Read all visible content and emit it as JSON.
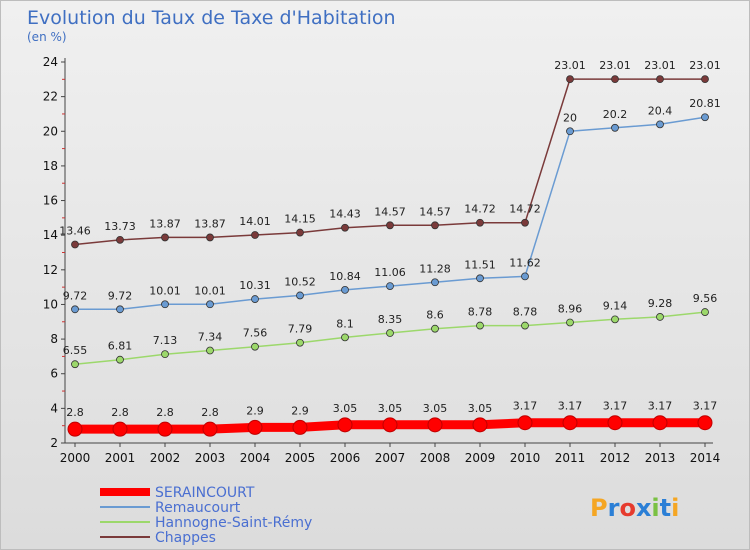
{
  "chart_data": {
    "type": "line",
    "title": "Evolution du Taux de Taxe d'Habitation",
    "unit_label": "(en %)",
    "x": [
      "2000",
      "2001",
      "2002",
      "2003",
      "2004",
      "2005",
      "2006",
      "2007",
      "2008",
      "2009",
      "2010",
      "2011",
      "2012",
      "2013",
      "2014"
    ],
    "ylim": [
      2,
      24
    ],
    "yticks": [
      2,
      4,
      6,
      8,
      10,
      12,
      14,
      16,
      18,
      20,
      22,
      24
    ],
    "grid": false,
    "legend_position": "bottom-left",
    "series": [
      {
        "name": "SERAINCOURT",
        "color": "#ff0000",
        "values": [
          2.8,
          2.8,
          2.8,
          2.8,
          2.9,
          2.9,
          3.05,
          3.05,
          3.05,
          3.05,
          3.17,
          3.17,
          3.17,
          3.17,
          3.17
        ],
        "labels": [
          "2.8",
          "2.8",
          "2.8",
          "2.8",
          "2.9",
          "2.9",
          "3.05",
          "3.05",
          "3.05",
          "3.05",
          "3.17",
          "3.17",
          "3.17",
          "3.17",
          "3.17"
        ]
      },
      {
        "name": "Remaucourt",
        "color": "#6a9bd2",
        "values": [
          9.72,
          9.72,
          10.01,
          10.01,
          10.31,
          10.52,
          10.84,
          11.06,
          11.28,
          11.51,
          11.62,
          20,
          20.2,
          20.4,
          20.81
        ],
        "labels": [
          "9.72",
          "9.72",
          "10.01",
          "10.01",
          "10.31",
          "10.52",
          "10.84",
          "11.06",
          "11.28",
          "11.51",
          "11.62",
          "20",
          "20.2",
          "20.4",
          "20.81"
        ]
      },
      {
        "name": "Hannogne-Saint-Rémy",
        "color": "#9cd86b",
        "values": [
          6.55,
          6.81,
          7.13,
          7.34,
          7.56,
          7.79,
          8.1,
          8.35,
          8.6,
          8.78,
          8.78,
          8.96,
          9.14,
          9.28,
          9.56
        ],
        "labels": [
          "6.55",
          "6.81",
          "7.13",
          "7.34",
          "7.56",
          "7.79",
          "8.1",
          "8.35",
          "8.6",
          "8.78",
          "8.78",
          "8.96",
          "9.14",
          "9.28",
          "9.56"
        ]
      },
      {
        "name": "Chappes",
        "color": "#7a3a3a",
        "values": [
          13.46,
          13.73,
          13.87,
          13.87,
          14.01,
          14.15,
          14.43,
          14.57,
          14.57,
          14.72,
          14.72,
          23.01,
          23.01,
          23.01,
          23.01
        ],
        "labels": [
          "13.46",
          "13.73",
          "13.87",
          "13.87",
          "14.01",
          "14.15",
          "14.43",
          "14.57",
          "14.57",
          "14.72",
          "14.72",
          "23.01",
          "23.01",
          "23.01",
          "23.01"
        ]
      }
    ]
  },
  "logo": {
    "text": "Proxiti",
    "colors": [
      "#f5a623",
      "#2b7fd6",
      "#e63b2e",
      "#2b7fd6",
      "#7ac143",
      "#2b7fd6",
      "#f5a623"
    ]
  }
}
